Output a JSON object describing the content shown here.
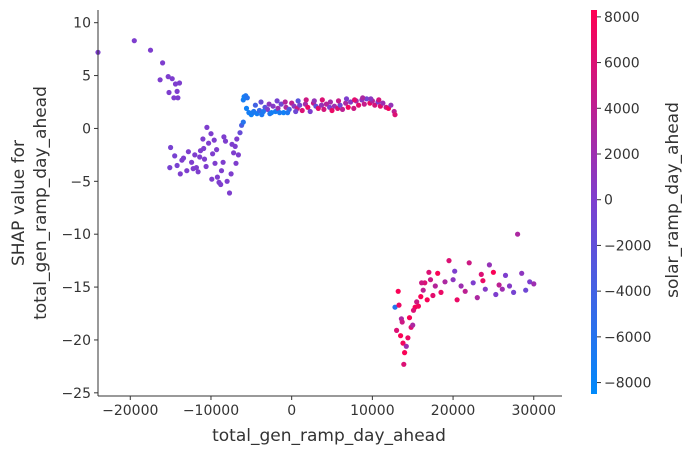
{
  "chart_data": {
    "type": "scatter",
    "xlabel": "total_gen_ramp_day_ahead",
    "ylabel_lines": [
      "SHAP value for",
      "total_gen_ramp_day_ahead"
    ],
    "colorbar_label": "solar_ramp_day_ahead",
    "xlim": [
      -24000,
      33500
    ],
    "ylim": [
      -25.3,
      11.2
    ],
    "x_ticks": [
      -20000,
      -10000,
      0,
      10000,
      20000,
      30000
    ],
    "x_tick_labels": [
      "−20000",
      "−10000",
      "0",
      "10000",
      "20000",
      "30000"
    ],
    "y_ticks": [
      -25,
      -20,
      -15,
      -10,
      -5,
      0,
      5,
      10
    ],
    "y_tick_labels": [
      "−25",
      "−20",
      "−15",
      "−10",
      "−5",
      "0",
      "5",
      "10"
    ],
    "colorbar_range": [
      -8500,
      8300
    ],
    "colorbar_ticks": [
      -8000,
      -6000,
      -4000,
      -2000,
      0,
      2000,
      4000,
      6000,
      8000
    ],
    "colorbar_tick_labels": [
      "−8000",
      "−6000",
      "−4000",
      "−2000",
      "0",
      "2000",
      "4000",
      "6000",
      "8000"
    ],
    "colormap": [
      "#008afb",
      "#7c3fcf",
      "#ff0052"
    ],
    "axis_color": "#333333",
    "points": [
      [
        -24000,
        7.2,
        0
      ],
      [
        -19500,
        8.3,
        0
      ],
      [
        -17500,
        7.4,
        0
      ],
      [
        -16000,
        6.2,
        0
      ],
      [
        -16300,
        4.6,
        0
      ],
      [
        -15300,
        4.9,
        0
      ],
      [
        -14800,
        4.7,
        0
      ],
      [
        -14400,
        4.2,
        0
      ],
      [
        -14200,
        3.5,
        0
      ],
      [
        -13900,
        4.3,
        0
      ],
      [
        -15200,
        3.4,
        0
      ],
      [
        -14600,
        2.9,
        0
      ],
      [
        -14100,
        2.9,
        0
      ],
      [
        -15000,
        -1.8,
        -400
      ],
      [
        -14500,
        -2.6,
        -400
      ],
      [
        -14200,
        -3.5,
        -400
      ],
      [
        -15100,
        -3.7,
        -400
      ],
      [
        -13800,
        -4.3,
        0
      ],
      [
        -13400,
        -2.8,
        0
      ],
      [
        -13000,
        -4.0,
        0
      ],
      [
        -12400,
        -3.2,
        0
      ],
      [
        -12000,
        -2.5,
        0
      ],
      [
        -11800,
        -3.7,
        0
      ],
      [
        -11600,
        -4.1,
        0
      ],
      [
        -11300,
        -2.1,
        0
      ],
      [
        -11000,
        -1.0,
        0
      ],
      [
        -10800,
        -2.9,
        0
      ],
      [
        -10500,
        0.1,
        0
      ],
      [
        -10300,
        -1.4,
        0
      ],
      [
        -10000,
        -0.5,
        0
      ],
      [
        -9800,
        -2.4,
        0
      ],
      [
        -9500,
        -3.3,
        0
      ],
      [
        -9200,
        -4.6,
        0
      ],
      [
        -9000,
        -5.1,
        0
      ],
      [
        -8700,
        -4.0,
        0
      ],
      [
        -8500,
        -3.2,
        0
      ],
      [
        -8200,
        -1.2,
        0
      ],
      [
        -8000,
        -5.0,
        0
      ],
      [
        -7700,
        -6.1,
        0
      ],
      [
        -7500,
        -4.3,
        0
      ],
      [
        -7200,
        -2.3,
        0
      ],
      [
        -7000,
        -1.7,
        0
      ],
      [
        -6800,
        -1.0,
        0
      ],
      [
        -6600,
        -2.5,
        0
      ],
      [
        -6400,
        -0.4,
        -1500
      ],
      [
        -6200,
        0.3,
        -3500
      ],
      [
        -6000,
        0.6,
        -6000
      ],
      [
        -12800,
        -2.2,
        0
      ],
      [
        -10900,
        -1.9,
        0
      ],
      [
        -9600,
        -1.1,
        0
      ],
      [
        -8400,
        -0.8,
        0
      ],
      [
        -12200,
        -3.8,
        0
      ],
      [
        -9900,
        -4.8,
        0
      ],
      [
        -8800,
        -5.3,
        0
      ],
      [
        -10600,
        -3.6,
        0
      ],
      [
        -11400,
        -2.7,
        0
      ],
      [
        -7400,
        -1.5,
        0
      ],
      [
        -6900,
        -3.3,
        0
      ],
      [
        -13600,
        -3.0,
        0
      ],
      [
        -9300,
        -2.0,
        0
      ],
      [
        -6000,
        2.7,
        -7000
      ],
      [
        -5900,
        3.0,
        -7500
      ],
      [
        -5700,
        3.1,
        -6500
      ],
      [
        -5500,
        2.9,
        -6000
      ],
      [
        -5300,
        1.5,
        -7000
      ],
      [
        -5000,
        1.3,
        -7500
      ],
      [
        -4700,
        1.6,
        -6000
      ],
      [
        -4300,
        1.4,
        -7000
      ],
      [
        -4000,
        1.7,
        -5000
      ],
      [
        -3700,
        1.3,
        -6500
      ],
      [
        -3300,
        2.0,
        -2500
      ],
      [
        -3000,
        1.8,
        0
      ],
      [
        -2700,
        1.4,
        -6000
      ],
      [
        -2300,
        2.1,
        500
      ],
      [
        -2000,
        1.6,
        -7000
      ],
      [
        -1700,
        1.9,
        2000
      ],
      [
        -1300,
        2.3,
        -1000
      ],
      [
        -1000,
        1.5,
        -7500
      ],
      [
        -700,
        2.0,
        3000
      ],
      [
        -300,
        1.8,
        -3000
      ],
      [
        0,
        2.4,
        4000
      ],
      [
        300,
        2.1,
        1000
      ],
      [
        700,
        1.9,
        5000
      ],
      [
        1000,
        2.2,
        -500
      ],
      [
        1300,
        1.7,
        6000
      ],
      [
        1700,
        2.3,
        2500
      ],
      [
        2000,
        2.0,
        7000
      ],
      [
        2300,
        1.6,
        0
      ],
      [
        2700,
        2.4,
        4500
      ],
      [
        3000,
        2.1,
        -2000
      ],
      [
        3300,
        1.9,
        6500
      ],
      [
        3700,
        2.2,
        1500
      ],
      [
        4000,
        1.8,
        5500
      ],
      [
        4300,
        2.3,
        3500
      ],
      [
        4700,
        2.0,
        0
      ],
      [
        5000,
        1.7,
        7000
      ],
      [
        5300,
        2.1,
        2000
      ],
      [
        5700,
        1.9,
        6000
      ],
      [
        6000,
        2.2,
        -1000
      ],
      [
        6300,
        1.8,
        4000
      ],
      [
        6700,
        2.4,
        3000
      ],
      [
        7000,
        2.0,
        7500
      ],
      [
        7300,
        2.5,
        500
      ],
      [
        7700,
        1.9,
        5000
      ],
      [
        8000,
        2.6,
        2500
      ],
      [
        8300,
        2.2,
        6500
      ],
      [
        8700,
        2.7,
        1000
      ],
      [
        9000,
        2.3,
        4500
      ],
      [
        9300,
        2.8,
        -500
      ],
      [
        9700,
        2.4,
        7000
      ],
      [
        10000,
        2.6,
        3500
      ],
      [
        10300,
        2.2,
        5500
      ],
      [
        10700,
        2.5,
        0
      ],
      [
        11000,
        2.1,
        6500
      ],
      [
        11300,
        2.4,
        2000
      ],
      [
        11700,
        2.0,
        5000
      ],
      [
        12000,
        1.9,
        7500
      ],
      [
        12300,
        2.2,
        1500
      ],
      [
        12700,
        1.6,
        4000
      ],
      [
        12800,
        1.3,
        6000
      ],
      [
        -4500,
        2.2,
        -4000
      ],
      [
        -3800,
        2.5,
        -1500
      ],
      [
        -2800,
        2.3,
        1000
      ],
      [
        -1800,
        2.6,
        -500
      ],
      [
        -800,
        2.5,
        3500
      ],
      [
        800,
        2.6,
        -2500
      ],
      [
        1800,
        2.7,
        5000
      ],
      [
        2800,
        2.6,
        1500
      ],
      [
        3800,
        2.7,
        6000
      ],
      [
        4800,
        2.5,
        2500
      ],
      [
        5800,
        2.6,
        4500
      ],
      [
        6800,
        2.8,
        0
      ],
      [
        7800,
        2.7,
        6500
      ],
      [
        8800,
        2.9,
        3000
      ],
      [
        9800,
        2.8,
        1000
      ],
      [
        10800,
        2.7,
        5500
      ],
      [
        -5600,
        1.9,
        -7500
      ],
      [
        -4800,
        1.5,
        -6800
      ],
      [
        -3500,
        1.6,
        -6500
      ],
      [
        -2500,
        1.5,
        -7200
      ],
      [
        -1500,
        1.5,
        -6800
      ],
      [
        -500,
        1.5,
        -6500
      ],
      [
        500,
        1.6,
        -1000
      ],
      [
        13200,
        -15.4,
        8000
      ],
      [
        12800,
        -16.9,
        -6000
      ],
      [
        13300,
        -16.7,
        7000
      ],
      [
        13600,
        -18.0,
        3000
      ],
      [
        13000,
        -19.1,
        6000
      ],
      [
        13500,
        -19.6,
        8000
      ],
      [
        13800,
        -20.3,
        7500
      ],
      [
        14000,
        -21.2,
        8000
      ],
      [
        13900,
        -22.3,
        6000
      ],
      [
        14200,
        -20.6,
        2000
      ],
      [
        14400,
        -19.8,
        7000
      ],
      [
        14600,
        -17.9,
        8000
      ],
      [
        14800,
        -18.8,
        6500
      ],
      [
        15000,
        -18.6,
        3000
      ],
      [
        15300,
        -16.9,
        8000
      ],
      [
        15500,
        -16.4,
        5000
      ],
      [
        15700,
        -16.8,
        7500
      ],
      [
        16000,
        -15.9,
        8000
      ],
      [
        16300,
        -15.3,
        4000
      ],
      [
        16500,
        -14.6,
        6000
      ],
      [
        16800,
        -16.2,
        8000
      ],
      [
        17200,
        -14.3,
        5000
      ],
      [
        17500,
        -15.8,
        6500
      ],
      [
        17800,
        -14.9,
        3500
      ],
      [
        18100,
        -13.7,
        8000
      ],
      [
        18500,
        -15.5,
        7000
      ],
      [
        19000,
        -14.5,
        3000
      ],
      [
        19500,
        -12.5,
        6000
      ],
      [
        20000,
        -14.3,
        1000
      ],
      [
        20500,
        -16.2,
        7000
      ],
      [
        21000,
        -14.9,
        2000
      ],
      [
        21500,
        -15.4,
        4000
      ],
      [
        22000,
        -12.7,
        5000
      ],
      [
        22500,
        -14.6,
        0
      ],
      [
        23000,
        -16.0,
        3000
      ],
      [
        23500,
        -13.8,
        6000
      ],
      [
        24000,
        -15.2,
        500
      ],
      [
        24500,
        -12.9,
        1500
      ],
      [
        25000,
        -13.6,
        8000
      ],
      [
        25300,
        -15.7,
        0
      ],
      [
        25700,
        -14.8,
        4000
      ],
      [
        26100,
        -15.2,
        2000
      ],
      [
        26500,
        -13.9,
        0
      ],
      [
        27000,
        -14.9,
        500
      ],
      [
        27500,
        -15.5,
        -500
      ],
      [
        28000,
        -10.0,
        3000
      ],
      [
        28500,
        -13.7,
        1000
      ],
      [
        29000,
        -15.3,
        -1000
      ],
      [
        29500,
        -14.5,
        0
      ],
      [
        30000,
        -14.7,
        2000
      ],
      [
        16100,
        -14.6,
        5000
      ],
      [
        17000,
        -13.6,
        6000
      ],
      [
        20200,
        -13.5,
        0
      ],
      [
        23700,
        -14.4,
        7000
      ],
      [
        13700,
        -18.3,
        5000
      ],
      [
        15100,
        -17.2,
        6000
      ]
    ]
  }
}
